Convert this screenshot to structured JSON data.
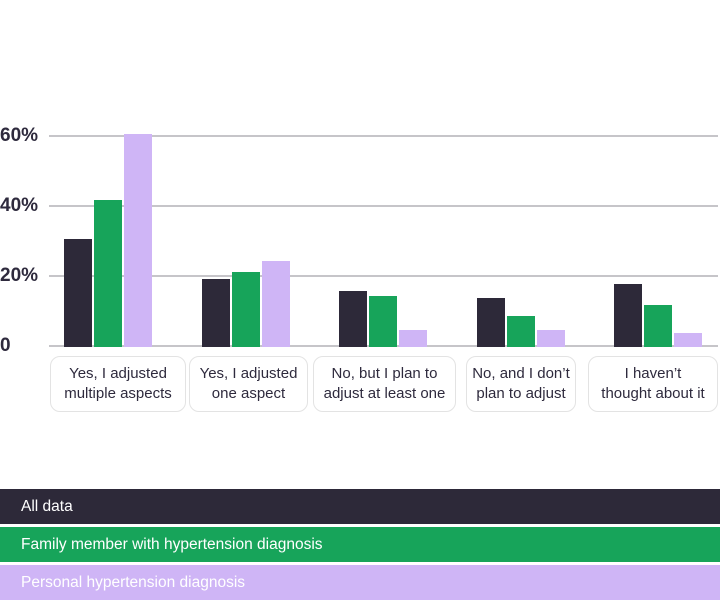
{
  "chart_data": {
    "type": "bar",
    "title": "",
    "xlabel": "",
    "ylabel": "",
    "categories": [
      "Yes, I adjusted\nmultiple aspects",
      "Yes, I adjusted\none aspect",
      "No, but I plan to\nadjust at least one",
      "No, and I don’t\nplan to adjust",
      "I haven’t\nthought about it"
    ],
    "series": [
      {
        "name": "All data",
        "color": "#2d2939",
        "values": [
          31,
          19.5,
          16,
          14,
          18
        ]
      },
      {
        "name": "Family member with hypertension diagnosis",
        "color": "#17a45a",
        "values": [
          42,
          21.5,
          14.5,
          9,
          12
        ]
      },
      {
        "name": "Personal hypertension diagnosis",
        "color": "#cfb5f6",
        "values": [
          61,
          24.5,
          5,
          5,
          4
        ]
      }
    ],
    "y_ticks": [
      {
        "label": "60%",
        "value": 60
      },
      {
        "label": "40%",
        "value": 40
      },
      {
        "label": "20%",
        "value": 20
      },
      {
        "label": "0",
        "value": 0
      }
    ],
    "ylim": [
      0,
      63
    ],
    "grid": true,
    "legend_position": "bottom"
  }
}
